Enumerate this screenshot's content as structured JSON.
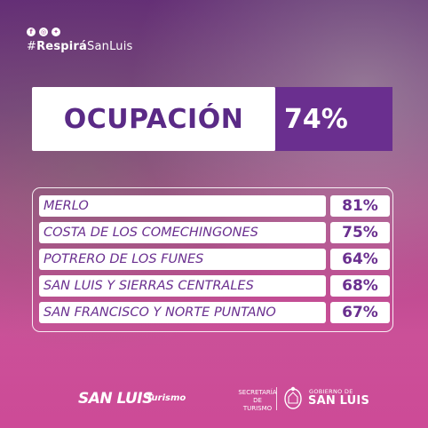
{
  "social_icons": [
    "facebook-icon",
    "instagram-icon",
    "twitter-icon"
  ],
  "hashtag": {
    "prefix": "#",
    "bold": "Respirá",
    "rest": "SanLuis"
  },
  "headline": {
    "label": "OCUPACIÓN",
    "value": "74%"
  },
  "table": {
    "rows": [
      {
        "name": "MERLO",
        "value": "81%"
      },
      {
        "name": "COSTA DE LOS COMECHINGONES",
        "value": "75%"
      },
      {
        "name": "POTRERO DE LOS FUNES",
        "value": "64%"
      },
      {
        "name": "SAN LUIS Y SIERRAS CENTRALES",
        "value": "68%"
      },
      {
        "name": "SAN FRANCISCO Y NORTE PUNTANO",
        "value": "67%"
      }
    ]
  },
  "footer": {
    "brand": "SAN LUIS",
    "brand_sub": "Turismo",
    "secretaria_line1": "SECRETARÍA",
    "secretaria_line2": "DE TURISMO",
    "gob_small": "GOBIERNO DE",
    "gob_big": "SAN LUIS"
  },
  "colors": {
    "accent": "#6a2f8f",
    "text": "#ffffff"
  }
}
